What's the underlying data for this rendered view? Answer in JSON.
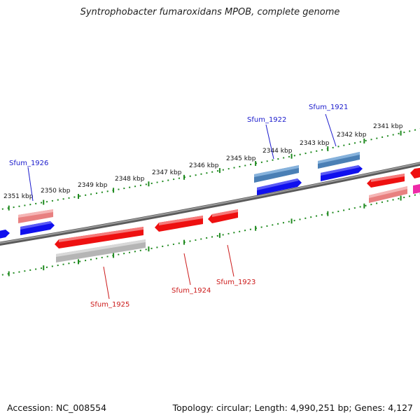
{
  "title": "Syntrophobacter fumaroxidans MPOB, complete genome",
  "footer": {
    "accession": "Accession: NC_008554",
    "topology": "Topology: circular; Length: 4,990,251 bp; Genes: 4,127"
  },
  "colors": {
    "backbone": "#808080",
    "tick": "#1f8a1f",
    "forward_label": "#1a1acc",
    "reverse_label": "#cc1a1a"
  },
  "scale_labels": [
    "2341 kbp",
    "2342 kbp",
    "2343 kbp",
    "2344 kbp",
    "2345 kbp",
    "2346 kbp",
    "2347 kbp",
    "2348 kbp",
    "2349 kbp",
    "2350 kbp",
    "2351 kbp"
  ],
  "gene_labels": [
    {
      "text": "Sfum_1921",
      "strand": "forward"
    },
    {
      "text": "Sfum_1922",
      "strand": "forward"
    },
    {
      "text": "Sfum_1926",
      "strand": "forward"
    },
    {
      "text": "Sfum_1923",
      "strand": "reverse"
    },
    {
      "text": "Sfum_1924",
      "strand": "reverse"
    },
    {
      "text": "Sfum_1925",
      "strand": "reverse"
    }
  ]
}
